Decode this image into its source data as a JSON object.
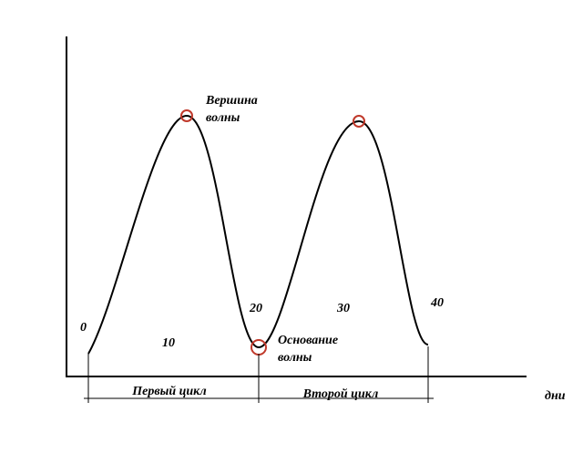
{
  "peak_label": [
    "Вершина",
    "волны"
  ],
  "base_label": [
    "Основание",
    "волны"
  ],
  "day_marks": [
    "0",
    "10",
    "20",
    "30",
    "40"
  ],
  "cycles": [
    "Первый цикл",
    "Второй цикл"
  ],
  "x_axis_label": "дни"
}
